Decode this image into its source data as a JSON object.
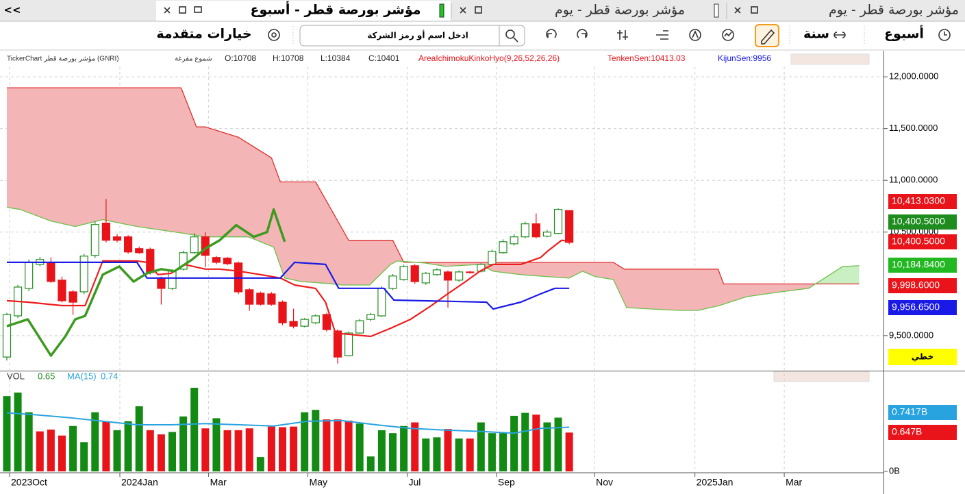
{
  "tabs": {
    "collapse": "<<",
    "items": [
      "مؤشر بورصة قطر - أسبوع",
      "مؤشر بورصة قطر - يوم",
      "مؤشر بورصة قطر - يوم"
    ]
  },
  "toolbar": {
    "advanced": "خيارات متقدمة",
    "search_placeholder": "ادخل اسم أو رمز الشركة",
    "year": "سنة",
    "week": "أسبوع"
  },
  "chart_data": [
    {
      "type": "candlestick",
      "legend": {
        "name": "TickerChart مؤشر بورصة قطر (GNRI)",
        "style": "شموع مفرغة",
        "open": "O:10708",
        "high": "H:10708",
        "low": "L:10384",
        "close": "C:10401",
        "indicator": "AreaIchimokuKinkoHyo(9,26,52,26,26)",
        "tenkan": "TenkenSen:10413.03",
        "kijun": "KijunSen:9956"
      },
      "up_color": "#1e8c1e",
      "down_color": "#e8141a",
      "open": [
        9293,
        9691,
        9956,
        10188,
        10202,
        10036,
        9923,
        9923,
        10275,
        10587,
        10454,
        10454,
        10341,
        10334,
        10056,
        9956,
        10142,
        10301,
        10454,
        10255,
        10248,
        10202,
        9943,
        9910,
        9903,
        9823,
        9637,
        9591,
        9624,
        9704,
        9545,
        9306,
        9525,
        9657,
        9691,
        9956,
        10042,
        10175,
        10009,
        10089,
        10115,
        10036,
        10115,
        10122,
        10188,
        10301,
        10387,
        10454,
        10580,
        10461,
        10487,
        10708
      ],
      "high": [
        9720,
        9990,
        10235,
        10260,
        10255,
        10070,
        9940,
        10290,
        10600,
        10819,
        10480,
        10470,
        10360,
        10350,
        10070,
        10140,
        10320,
        10490,
        10500,
        10270,
        10260,
        10215,
        9960,
        9925,
        9920,
        9840,
        9760,
        9670,
        9705,
        9720,
        9560,
        9540,
        9660,
        9720,
        9975,
        10095,
        10185,
        10190,
        10115,
        10150,
        10130,
        10130,
        10125,
        10200,
        10330,
        10430,
        10480,
        10600,
        10680,
        10520,
        10730,
        10708
      ],
      "low": [
        9260,
        9670,
        9930,
        10170,
        10010,
        9820,
        9700,
        9900,
        10250,
        10400,
        10400,
        10290,
        10290,
        10090,
        9800,
        9940,
        10130,
        10290,
        10160,
        10190,
        10180,
        9900,
        9740,
        9790,
        9790,
        9600,
        9570,
        9580,
        9610,
        9540,
        9230,
        9300,
        9520,
        9640,
        9680,
        9940,
        10030,
        10000,
        9990,
        10080,
        9770,
        10020,
        10100,
        10110,
        10180,
        10290,
        10370,
        10440,
        10440,
        10450,
        10480,
        10384
      ],
      "close": [
        9704,
        9969,
        10208,
        10235,
        10023,
        9837,
        9823,
        10268,
        10573,
        10421,
        10421,
        10308,
        10301,
        10109,
        9956,
        10122,
        10301,
        10454,
        10275,
        10208,
        10195,
        9923,
        9803,
        9803,
        9803,
        9624,
        9591,
        9657,
        9691,
        9558,
        9293,
        9525,
        9644,
        9704,
        9956,
        10076,
        10168,
        10022,
        10102,
        10135,
        10036,
        10115,
        10109,
        10188,
        10314,
        10407,
        10454,
        10580,
        10454,
        10500,
        10719,
        10401
      ],
      "cloud": {
        "bear_fill": "#f3b5b5",
        "bull_fill": "#c9efc2",
        "span_a": {
          "color": "#6cc04a",
          "x": [
            0,
            1.2,
            4,
            6.2,
            8.7,
            11.8,
            16.1,
            18,
            21.9,
            24.2,
            25.2,
            26.7,
            29.2,
            30.4,
            32.9,
            34.8,
            35.4,
            37.9,
            39.8,
            42.9,
            44.1,
            46.6,
            49.1,
            51,
            52.2,
            53.4,
            55,
            56.2,
            58.4,
            60.9,
            62.7,
            64.6,
            67.1,
            70.2,
            72.7,
            75.8,
            77.3
          ],
          "values": [
            10739,
            10719,
            10607,
            10554,
            10620,
            10554,
            10487,
            10454,
            10454,
            10355,
            10056,
            10022,
            10003,
            9989,
            9989,
            10188,
            10221,
            10202,
            10168,
            10188,
            10122,
            10089,
            10069,
            10056,
            10122,
            10069,
            10042,
            9770,
            9757,
            9744,
            9744,
            9790,
            9876,
            9923,
            9956,
            10168,
            10175
          ]
        },
        "span_b": {
          "color": "#e03030",
          "x": [
            0,
            15.8,
            17.2,
            18,
            21,
            24,
            24.8,
            28,
            31,
            35,
            36,
            55,
            56,
            64.5,
            65,
            77.3
          ],
          "values": [
            11894,
            11894,
            11516,
            11516,
            11416,
            11217,
            10985,
            10985,
            10421,
            10421,
            10208,
            10208,
            10142,
            10142,
            9999,
            9999
          ]
        }
      },
      "lines": [
        {
          "color": "#ee1c1c",
          "width": 2.2,
          "x": [
            0,
            1.9,
            5,
            7.1,
            8.7,
            9.9,
            11.8,
            12.7,
            13.7,
            14.9,
            16.1,
            18,
            19.3,
            21.1,
            23,
            24.8,
            26.1,
            28,
            28.9,
            29.8,
            33,
            34.8,
            36.6,
            38.5,
            39.8,
            41.6,
            42.9,
            44.1,
            46.6,
            48.4,
            49.1,
            50.3,
            51
          ],
          "values": [
            9837,
            9823,
            9790,
            9790,
            10221,
            10221,
            10221,
            10208,
            10089,
            10102,
            10188,
            10142,
            10142,
            10122,
            10089,
            10056,
            9989,
            9956,
            9823,
            9525,
            9492,
            9571,
            9657,
            9790,
            9890,
            10022,
            10122,
            10188,
            10188,
            10255,
            10321,
            10421,
            10413
          ]
        },
        {
          "color": "#1a1ae6",
          "width": 2.2,
          "x": [
            0,
            11.8,
            12.7,
            24.8,
            26.1,
            28.9,
            30.1,
            34.2,
            35.1,
            43.5,
            44.1,
            46.6,
            48.4,
            49.7,
            51
          ],
          "values": [
            10208,
            10208,
            10056,
            10056,
            10208,
            10188,
            9957,
            9957,
            9843,
            9823,
            9757,
            9823,
            9903,
            9957,
            9957
          ]
        },
        {
          "color": "#3c9a1e",
          "width": 3.5,
          "x": [
            0,
            1.9,
            4,
            5.3,
            6.2,
            7.1,
            8.7,
            10.2,
            11.5,
            12.7,
            14,
            15.2,
            16.8,
            18,
            19.3,
            20.8,
            22.4,
            23.6,
            24.2,
            25.2
          ],
          "values": [
            9591,
            9657,
            9306,
            9492,
            9657,
            9691,
            10089,
            10168,
            10022,
            10102,
            10142,
            10122,
            10235,
            10341,
            10421,
            10567,
            10454,
            10500,
            10719,
            10407
          ]
        }
      ],
      "xlim": [
        -0.62,
        79.5
      ],
      "ylim": [
        9168,
        12100
      ],
      "yticks": [
        {
          "value": 9500,
          "label": "9,500.0000"
        },
        {
          "value": 10500,
          "label": "10,500.0000"
        },
        {
          "value": 11000,
          "label": "11,000.0000"
        },
        {
          "value": 11500,
          "label": "11,500.0000"
        },
        {
          "value": 12000,
          "label": "12,000.0000"
        }
      ],
      "grid": true,
      "price_tags": [
        {
          "label": "10,413.0300",
          "color": "#e8141a"
        },
        {
          "label": "10,400.5000",
          "color": "#1e8c1e"
        },
        {
          "label": "10,400.5000",
          "color": "#e8141a"
        },
        {
          "label": "10,184.8400",
          "color": "#22b822"
        },
        {
          "label": "9,998.6000",
          "color": "#e8141a"
        },
        {
          "label": "9,956.6500",
          "color": "#1a1ae6"
        }
      ],
      "line_style_label": "خطي"
    },
    {
      "type": "bar",
      "legend": {
        "name": "VOL",
        "value": "0.65",
        "ma_name": "MA(15)",
        "ma_value": "0.74"
      },
      "values": [
        1.26,
        1.32,
        0.99,
        0.67,
        0.7,
        0.6,
        0.76,
        0.49,
        0.99,
        0.84,
        0.69,
        0.84,
        1.09,
        0.69,
        0.62,
        0.66,
        0.92,
        1.4,
        0.72,
        0.89,
        0.69,
        0.69,
        0.72,
        0.24,
        0.75,
        0.74,
        0.75,
        0.99,
        1.03,
        0.87,
        0.87,
        0.85,
        0.8,
        0.25,
        0.69,
        0.64,
        0.76,
        0.82,
        0.55,
        0.57,
        0.71,
        0.55,
        0.55,
        0.82,
        0.64,
        0.64,
        0.93,
        0.98,
        0.95,
        0.82,
        0.9,
        0.65
      ],
      "colors": [
        "#138a13",
        "#138a13",
        "#138a13",
        "#e8141a",
        "#e8141a",
        "#e8141a",
        "#138a13",
        "#138a13",
        "#138a13",
        "#e8141a",
        "#138a13",
        "#138a13",
        "#138a13",
        "#e8141a",
        "#e8141a",
        "#138a13",
        "#138a13",
        "#138a13",
        "#e8141a",
        "#138a13",
        "#e8141a",
        "#e8141a",
        "#e8141a",
        "#138a13",
        "#e8141a",
        "#e8141a",
        "#e8141a",
        "#138a13",
        "#138a13",
        "#e8141a",
        "#e8141a",
        "#e8141a",
        "#138a13",
        "#138a13",
        "#138a13",
        "#138a13",
        "#138a13",
        "#e8141a",
        "#138a13",
        "#138a13",
        "#e8141a",
        "#138a13",
        "#e8141a",
        "#138a13",
        "#138a13",
        "#138a13",
        "#138a13",
        "#138a13",
        "#e8141a",
        "#138a13",
        "#138a13",
        "#e8141a"
      ],
      "ma": {
        "color": "#29a3e0",
        "x": [
          0,
          2.5,
          5.6,
          8.7,
          11.8,
          14.9,
          18,
          21.1,
          24.2,
          27.3,
          30.4,
          33.5,
          36.6,
          39.8,
          42.9,
          46,
          48.4,
          51
        ],
        "values": [
          0.98,
          0.95,
          0.9,
          0.84,
          0.78,
          0.78,
          0.8,
          0.78,
          0.76,
          0.84,
          0.85,
          0.78,
          0.72,
          0.69,
          0.67,
          0.64,
          0.72,
          0.74
        ]
      },
      "xlim": [
        -0.62,
        79.5
      ],
      "xticks": [
        {
          "value": 0.25,
          "label": "2023Oct"
        },
        {
          "value": 10.25,
          "label": "2024Jan"
        },
        {
          "value": 18.3,
          "label": "Mar"
        },
        {
          "value": 27.3,
          "label": "May"
        },
        {
          "value": 36.3,
          "label": "Jul"
        },
        {
          "value": 44.4,
          "label": "Sep"
        },
        {
          "value": 53.3,
          "label": "Nov"
        },
        {
          "value": 62.4,
          "label": "2025Jan"
        },
        {
          "value": 70.5,
          "label": "Mar"
        }
      ],
      "ylim": [
        0,
        1.64
      ],
      "yticks": [
        {
          "value": 0,
          "label": "0B"
        }
      ],
      "tags": [
        {
          "label": "0.7417B",
          "color": "#29a3e0"
        },
        {
          "label": "0.647B",
          "color": "#e8141a"
        }
      ]
    }
  ]
}
